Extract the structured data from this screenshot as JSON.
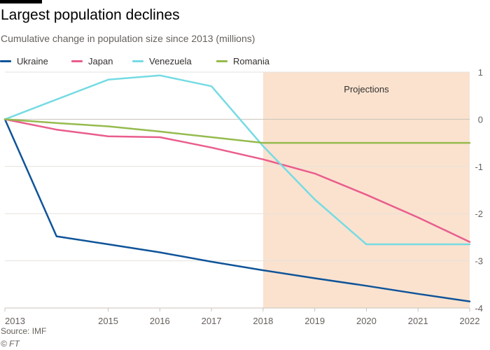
{
  "header": {
    "title": "Largest population declines",
    "subtitle": "Cumulative change in population size since 2013 (millions)"
  },
  "footer": {
    "source": "Source: IMF",
    "credit": "© FT"
  },
  "chart_data": {
    "type": "line",
    "title": "Largest population declines",
    "subtitle": "Cumulative change in population size since 2013 (millions)",
    "xlabel": "",
    "ylabel": "",
    "x": [
      2013,
      2014,
      2015,
      2016,
      2017,
      2018,
      2019,
      2020,
      2021,
      2022
    ],
    "x_tick_labels": [
      "2013",
      "2015",
      "2016",
      "2017",
      "2018",
      "2019",
      "2020",
      "2021",
      "2022"
    ],
    "x_tick_values": [
      2013,
      2015,
      2016,
      2017,
      2018,
      2019,
      2020,
      2021,
      2022
    ],
    "xlim": [
      2013,
      2022
    ],
    "ylim": [
      -4,
      1
    ],
    "y_ticks": [
      1,
      0,
      -1,
      -2,
      -3,
      -4
    ],
    "grid": true,
    "legend_position": "top-left",
    "projection": {
      "label": "Projections",
      "start": 2018,
      "end": 2022,
      "color": "#fae2cf"
    },
    "series": [
      {
        "name": "Ukraine",
        "color": "#0f5499",
        "values": [
          0,
          -2.48,
          -2.65,
          -2.82,
          -3.02,
          -3.2,
          -3.37,
          -3.53,
          -3.7,
          -3.86
        ]
      },
      {
        "name": "Japan",
        "color": "#e95d8c",
        "values": [
          0,
          -0.22,
          -0.36,
          -0.38,
          -0.6,
          -0.85,
          -1.15,
          -1.6,
          -2.08,
          -2.6
        ]
      },
      {
        "name": "Venezuela",
        "color": "#76dbe3",
        "values": [
          0,
          0.42,
          0.84,
          0.93,
          0.7,
          -0.57,
          -1.7,
          -2.65,
          -2.65,
          -2.65
        ]
      },
      {
        "name": "Romania",
        "color": "#96bb4e",
        "values": [
          0,
          -0.08,
          -0.15,
          -0.26,
          -0.38,
          -0.5,
          -0.5,
          -0.5,
          -0.5,
          -0.5
        ]
      }
    ]
  }
}
